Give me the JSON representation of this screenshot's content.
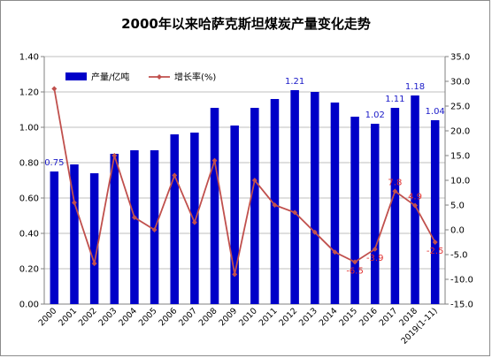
{
  "chart_data": {
    "type": "bar",
    "title": "2000年以来哈萨克斯坦煤炭产量变化走势",
    "categories": [
      "2000",
      "2001",
      "2002",
      "2003",
      "2004",
      "2005",
      "2006",
      "2007",
      "2008",
      "2009",
      "2010",
      "2011",
      "2012",
      "2013",
      "2014",
      "2015",
      "2016",
      "2017",
      "2018",
      "2019(1-11)"
    ],
    "series": [
      {
        "name": "产量/亿吨",
        "kind": "bar",
        "axis": "left",
        "color": "#0000c8",
        "values": [
          0.75,
          0.79,
          0.74,
          0.85,
          0.87,
          0.87,
          0.96,
          0.97,
          1.11,
          1.01,
          1.11,
          1.16,
          1.21,
          1.2,
          1.14,
          1.06,
          1.02,
          1.11,
          1.18,
          1.04
        ]
      },
      {
        "name": "增长率(%)",
        "kind": "line",
        "axis": "right",
        "color": "#c0504d",
        "values": [
          28.5,
          5.5,
          -6.8,
          15.0,
          2.5,
          0.0,
          11.0,
          1.5,
          14.0,
          -9.0,
          10.0,
          5.0,
          3.5,
          -0.5,
          -4.5,
          -6.5,
          -3.9,
          7.8,
          4.9,
          -2.5
        ]
      }
    ],
    "y_left": {
      "min": 0,
      "max": 1.4,
      "step": 0.2,
      "ticks": [
        "0.00",
        "0.20",
        "0.40",
        "0.60",
        "0.80",
        "1.00",
        "1.20",
        "1.40"
      ]
    },
    "y_right": {
      "min": -15,
      "max": 35,
      "step": 5,
      "ticks": [
        "-15.0",
        "-10.0",
        "-5.0",
        "0.0",
        "5.0",
        "10.0",
        "15.0",
        "20.0",
        "25.0",
        "30.0",
        "35.0"
      ]
    },
    "bar_labels": [
      {
        "index": 0,
        "text": "0.75"
      },
      {
        "index": 12,
        "text": "1.21"
      },
      {
        "index": 16,
        "text": "1.02"
      },
      {
        "index": 17,
        "text": "1.11"
      },
      {
        "index": 18,
        "text": "1.18"
      },
      {
        "index": 19,
        "text": "1.04"
      }
    ],
    "line_labels": [
      {
        "index": 15,
        "text": "-6.5"
      },
      {
        "index": 16,
        "text": "-3.9"
      },
      {
        "index": 17,
        "text": "7.8"
      },
      {
        "index": 18,
        "text": "4.9"
      },
      {
        "index": 19,
        "text": "-2.5"
      }
    ],
    "legend": {
      "placement": "top-left",
      "items": [
        "产量/亿吨",
        "增长率(%)"
      ]
    },
    "grid": true
  }
}
